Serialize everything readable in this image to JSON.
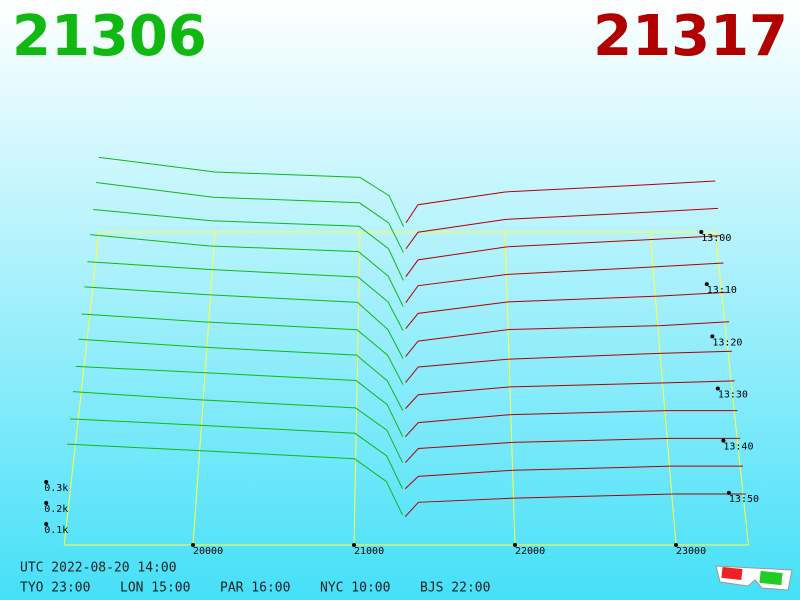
{
  "chart_data": {
    "type": "depth3d",
    "bid": "21306",
    "ask": "21317",
    "bid_color": "#11b811",
    "ask_color": "#b00000",
    "xlim": [
      19200,
      23450
    ],
    "xticks": [
      20000,
      21000,
      22000,
      23000
    ],
    "zlim": [
      "13:00",
      "14:00"
    ],
    "zticks": [
      "13:00",
      "13:10",
      "13:20",
      "13:30",
      "13:40",
      "13:50"
    ],
    "ylim": [
      0,
      0.45
    ],
    "yticks": [
      {
        "value": 0.1,
        "label": "0.1k"
      },
      {
        "value": 0.2,
        "label": "0.2k"
      },
      {
        "value": 0.3,
        "label": "0.3k"
      }
    ],
    "times": [
      "13:00",
      "13:05",
      "13:10",
      "13:15",
      "13:20",
      "13:25",
      "13:30",
      "13:35",
      "13:40",
      "13:45",
      "13:50",
      "13:55"
    ],
    "bid_prices": [
      19200,
      20000,
      21000,
      21200,
      21300
    ],
    "ask_prices": [
      21317,
      21400,
      22000,
      23000,
      23450
    ],
    "bids": [
      [
        0.41,
        0.33,
        0.3,
        0.2,
        0.03
      ],
      [
        0.41,
        0.33,
        0.3,
        0.19,
        0.03
      ],
      [
        0.4,
        0.34,
        0.31,
        0.19,
        0.02
      ],
      [
        0.4,
        0.34,
        0.31,
        0.18,
        0.02
      ],
      [
        0.39,
        0.35,
        0.31,
        0.18,
        0.03
      ],
      [
        0.39,
        0.35,
        0.31,
        0.17,
        0.02
      ],
      [
        0.38,
        0.34,
        0.3,
        0.17,
        0.02
      ],
      [
        0.38,
        0.34,
        0.3,
        0.17,
        0.02
      ],
      [
        0.37,
        0.34,
        0.3,
        0.18,
        0.02
      ],
      [
        0.37,
        0.33,
        0.29,
        0.18,
        0.02
      ],
      [
        0.36,
        0.33,
        0.29,
        0.18,
        0.02
      ],
      [
        0.36,
        0.33,
        0.29,
        0.18,
        0.02
      ]
    ],
    "asks": [
      [
        0.05,
        0.15,
        0.22,
        0.26,
        0.28
      ],
      [
        0.05,
        0.14,
        0.21,
        0.25,
        0.27
      ],
      [
        0.04,
        0.13,
        0.2,
        0.24,
        0.26
      ],
      [
        0.04,
        0.13,
        0.19,
        0.23,
        0.25
      ],
      [
        0.04,
        0.12,
        0.18,
        0.21,
        0.23
      ],
      [
        0.03,
        0.11,
        0.17,
        0.19,
        0.21
      ],
      [
        0.03,
        0.11,
        0.15,
        0.18,
        0.19
      ],
      [
        0.03,
        0.1,
        0.14,
        0.16,
        0.17
      ],
      [
        0.02,
        0.09,
        0.13,
        0.15,
        0.15
      ],
      [
        0.02,
        0.09,
        0.12,
        0.14,
        0.14
      ],
      [
        0.02,
        0.08,
        0.11,
        0.13,
        0.13
      ],
      [
        0.01,
        0.08,
        0.1,
        0.12,
        0.12
      ]
    ]
  },
  "footer": {
    "utc": "UTC 2022-08-20 14:00",
    "clocks": [
      "TYO 23:00",
      "LON 15:00",
      "PAR 16:00",
      "NYC 10:00",
      "BJS 22:00"
    ]
  }
}
